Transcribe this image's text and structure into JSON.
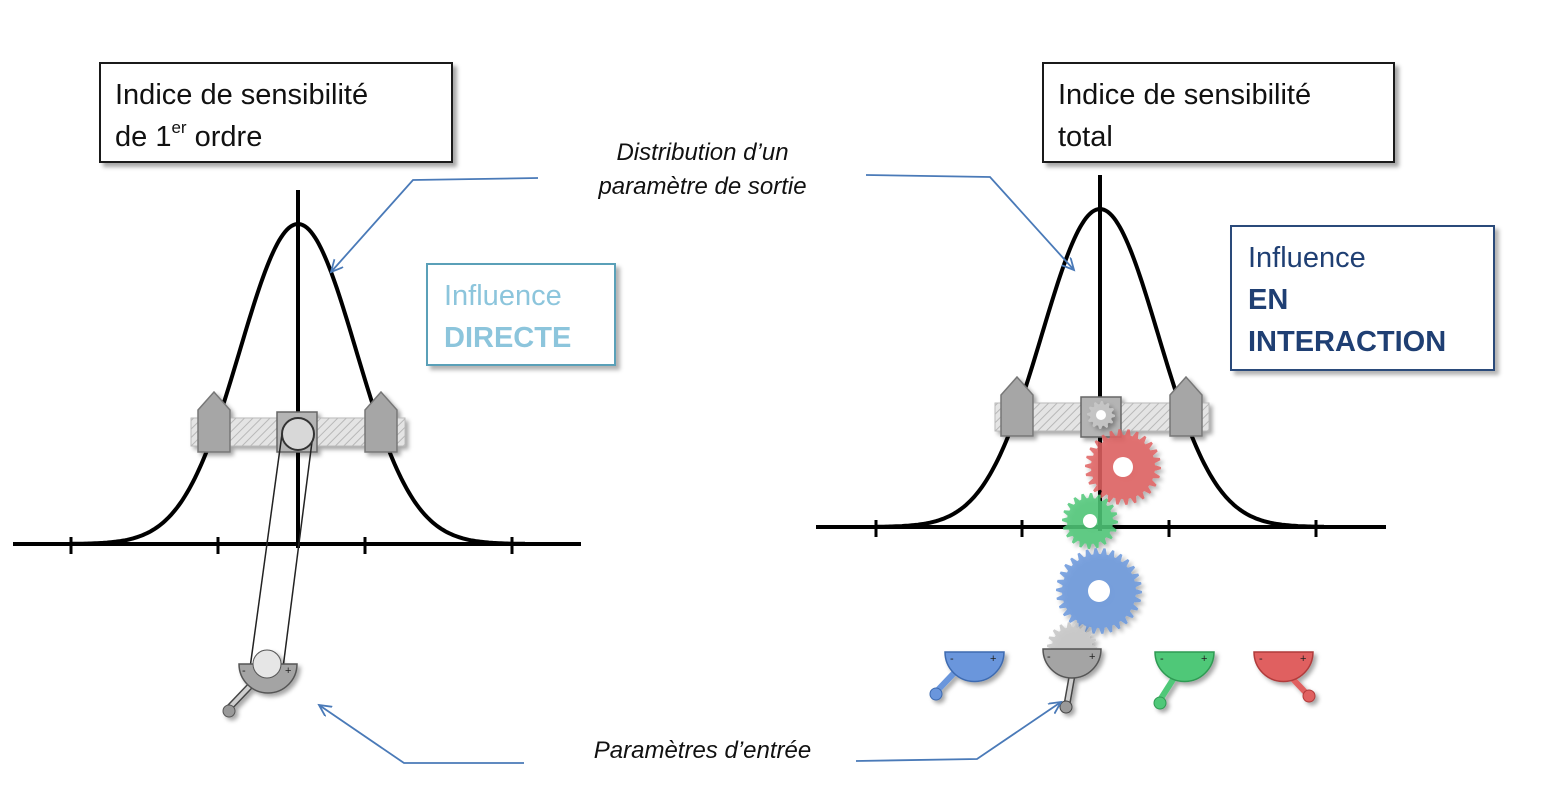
{
  "left_box": {
    "line1": "Indice de sensibilité",
    "line2_pre": "de 1",
    "line2_sup": "er",
    "line2_post": " ordre"
  },
  "right_box": {
    "line1": "Indice de sensibilité",
    "line2": "total"
  },
  "influence_left": {
    "line1": "Influence",
    "line2": "DIRECTE",
    "color": "#8cc5dc",
    "border": "#5aa0b8"
  },
  "influence_right": {
    "line1": "Influence",
    "line2": "EN",
    "line3": "INTERACTION",
    "color": "#1f3f73",
    "border": "#2a4a7a"
  },
  "annotations": {
    "distribution_line1": "Distribution d’un",
    "distribution_line2": "paramètre de sortie",
    "inputs": "Paramètres d’entrée"
  },
  "colors": {
    "gear_red": "#e06060",
    "gear_green": "#4fc878",
    "gear_blue": "#6a96dc",
    "gear_grey": "#c8c8c8",
    "arrow": "#4a7ab8"
  }
}
